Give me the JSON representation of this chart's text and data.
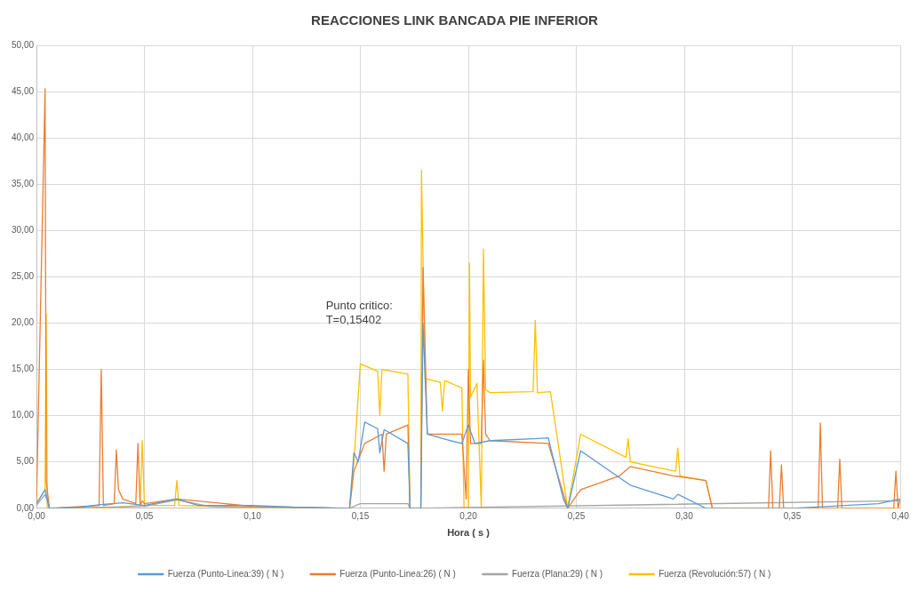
{
  "chart_data": {
    "type": "line",
    "title": "REACCIONES LINK BANCADA PIE INFERIOR",
    "xlabel": "Hora ( s )",
    "xlim": [
      0,
      0.4
    ],
    "xticks": [
      {
        "value": 0,
        "label": "0,00"
      },
      {
        "value": 0.05,
        "label": "0,05"
      },
      {
        "value": 0.1,
        "label": "0,10"
      },
      {
        "value": 0.15,
        "label": "0,15"
      },
      {
        "value": 0.2,
        "label": "0,20"
      },
      {
        "value": 0.25,
        "label": "0,25"
      },
      {
        "value": 0.3,
        "label": "0,30"
      },
      {
        "value": 0.35,
        "label": "0,35"
      },
      {
        "value": 0.4,
        "label": "0,40"
      }
    ],
    "ylim": [
      0,
      50
    ],
    "yticks": [
      {
        "value": 0,
        "label": "0,00"
      },
      {
        "value": 5,
        "label": "5,00"
      },
      {
        "value": 10,
        "label": "10,00"
      },
      {
        "value": 15,
        "label": "15,00"
      },
      {
        "value": 20,
        "label": "20,00"
      },
      {
        "value": 25,
        "label": "25,00"
      },
      {
        "value": 30,
        "label": "30,00"
      },
      {
        "value": 35,
        "label": "35,00"
      },
      {
        "value": 40,
        "label": "40,00"
      },
      {
        "value": 45,
        "label": "45,00"
      },
      {
        "value": 50,
        "label": "50,00"
      }
    ],
    "grid": true,
    "legend": "bottom",
    "marker": "none",
    "line_style": "solid",
    "annotations": [
      "Punto critico:\nT=0,15402"
    ],
    "series": [
      {
        "name": "Fuerza (Punto-Linea:39) ( N )",
        "color": "#5b9bd5",
        "x": [
          0,
          0.004,
          0.006,
          0.02,
          0.03,
          0.04,
          0.05,
          0.065,
          0.075,
          0.1,
          0.12,
          0.145,
          0.147,
          0.149,
          0.152,
          0.158,
          0.159,
          0.161,
          0.172,
          0.173,
          0.178,
          0.179,
          0.181,
          0.19,
          0.197,
          0.2,
          0.203,
          0.21,
          0.23,
          0.237,
          0.244,
          0.246,
          0.252,
          0.275,
          0.295,
          0.297,
          0.31,
          0.35,
          0.39,
          0.4
        ],
        "values": [
          0.5,
          2,
          0,
          0.1,
          0.4,
          0.6,
          0.3,
          1,
          0.3,
          0.3,
          0.1,
          0,
          6,
          5,
          9.3,
          8.6,
          6,
          8.5,
          7,
          0,
          0,
          20,
          8,
          7.4,
          7,
          9,
          7,
          7.3,
          7.5,
          7.6,
          1,
          0,
          6.2,
          2.5,
          1,
          1.5,
          0,
          0,
          0.5,
          1
        ]
      },
      {
        "name": "Fuerza (Punto-Linea:26) ( N )",
        "color": "#ed7d31",
        "x": [
          0,
          0.004,
          0.0045,
          0.006,
          0.029,
          0.03,
          0.031,
          0.036,
          0.037,
          0.038,
          0.04,
          0.046,
          0.047,
          0.048,
          0.049,
          0.05,
          0.065,
          0.1,
          0.145,
          0.147,
          0.152,
          0.16,
          0.161,
          0.162,
          0.172,
          0.173,
          0.178,
          0.179,
          0.181,
          0.197,
          0.199,
          0.2,
          0.201,
          0.206,
          0.207,
          0.208,
          0.21,
          0.237,
          0.246,
          0.252,
          0.27,
          0.275,
          0.295,
          0.31,
          0.313,
          0.339,
          0.34,
          0.341,
          0.344,
          0.345,
          0.346,
          0.362,
          0.363,
          0.364,
          0.371,
          0.372,
          0.373,
          0.397,
          0.398,
          0.399,
          0.4
        ],
        "values": [
          0.5,
          45.3,
          3,
          0,
          0.3,
          15,
          0.3,
          0.5,
          6.3,
          2,
          1,
          0.5,
          7,
          0.3,
          0.8,
          0.5,
          1,
          0.2,
          0,
          4,
          7,
          8,
          4,
          8,
          9,
          0,
          0,
          26,
          8,
          8,
          1,
          15,
          7,
          7,
          16,
          8,
          7.3,
          7,
          0,
          2,
          3.5,
          4.5,
          3.5,
          3,
          0,
          0,
          6.2,
          0,
          0,
          4.7,
          0,
          0,
          9.2,
          0,
          0,
          5.3,
          0,
          0,
          4,
          0,
          1
        ]
      },
      {
        "name": "Fuerza (Plana:29) ( N )",
        "color": "#a5a5a5",
        "x": [
          0,
          0.004,
          0.006,
          0.05,
          0.065,
          0.08,
          0.145,
          0.15,
          0.172,
          0.173,
          0.4
        ],
        "values": [
          0.3,
          1.5,
          0,
          0.2,
          0.9,
          0.2,
          0,
          0.5,
          0.5,
          0,
          0.8
        ]
      },
      {
        "name": "Fuerza (Revolución:57) ( N )",
        "color": "#ffc000",
        "x": [
          0,
          0.004,
          0.0045,
          0.005,
          0.03,
          0.048,
          0.049,
          0.05,
          0.064,
          0.065,
          0.066,
          0.1,
          0.145,
          0.147,
          0.15,
          0.158,
          0.159,
          0.16,
          0.172,
          0.173,
          0.178,
          0.1783,
          0.18,
          0.187,
          0.188,
          0.189,
          0.197,
          0.198,
          0.2,
          0.2005,
          0.201,
          0.204,
          0.206,
          0.207,
          0.208,
          0.21,
          0.23,
          0.231,
          0.232,
          0.238,
          0.246,
          0.252,
          0.273,
          0.274,
          0.275,
          0.296,
          0.297,
          0.298,
          0.31,
          0.313,
          0.35,
          0.4
        ],
        "values": [
          0.5,
          2,
          21,
          0,
          0,
          0.3,
          7.3,
          0.3,
          0.3,
          3,
          0.3,
          0.1,
          0,
          5,
          15.6,
          14.8,
          10,
          15,
          14.5,
          0,
          0,
          36.5,
          14,
          13.6,
          10.5,
          13.8,
          13,
          0,
          0,
          26.5,
          12,
          13.5,
          0,
          28,
          12.8,
          12.5,
          12.6,
          20.3,
          12.5,
          12.6,
          0,
          8,
          5.5,
          7.5,
          5,
          4,
          6.5,
          3.5,
          3,
          0,
          0,
          0
        ]
      }
    ]
  }
}
